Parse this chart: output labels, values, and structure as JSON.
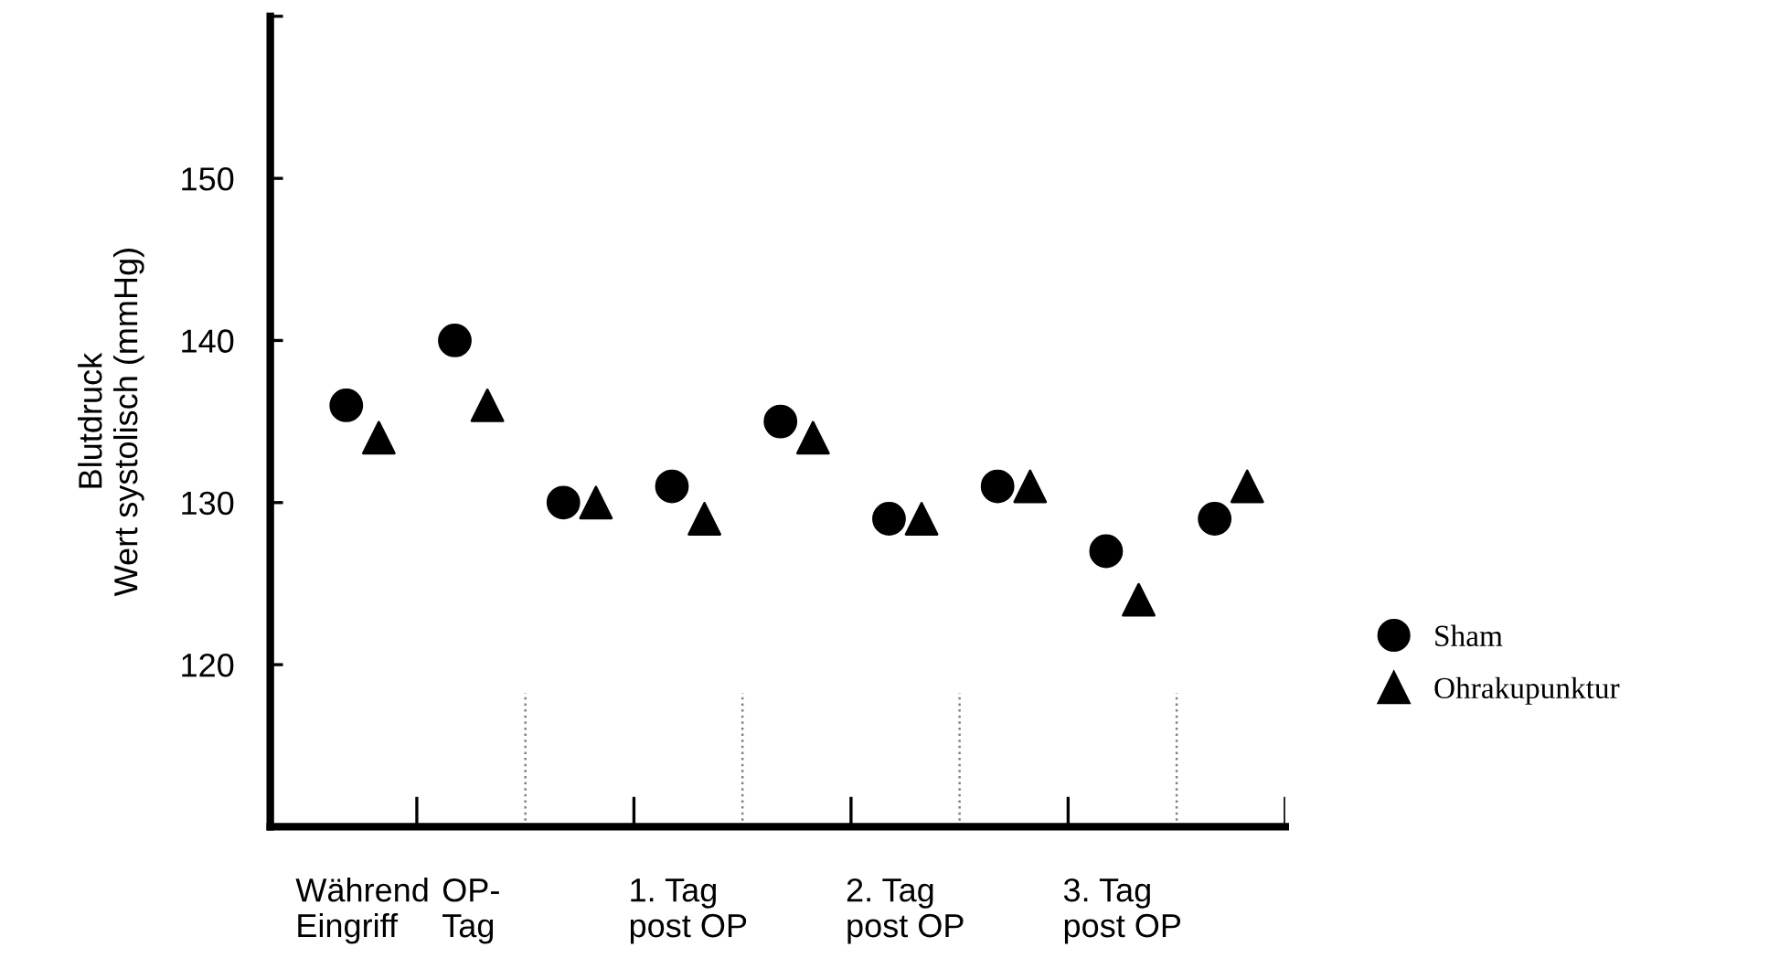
{
  "chart_data": {
    "type": "scatter",
    "ylabel": "Blutdruck\nWert systolisch (mmHg)",
    "categories": [
      "Während\nEingriff",
      "OP-\nTag",
      null,
      "1. Tag\npost OP",
      null,
      "2. Tag\npost OP",
      null,
      "3. Tag\npost OP",
      null
    ],
    "ylim": [
      110,
      160
    ],
    "yticks": [
      120,
      130,
      140,
      150,
      {
        "value": 160,
        "label": null
      }
    ],
    "series": [
      {
        "name": "Sham",
        "color": "#000000",
        "marker": "circle",
        "values": [
          136,
          140,
          130,
          131,
          135,
          129,
          131,
          127,
          129
        ]
      },
      {
        "name": "Ohrakupunktur",
        "color": "#000000",
        "marker": "triangle",
        "values": [
          134,
          136,
          130,
          129,
          134,
          129,
          131,
          124,
          131
        ]
      }
    ],
    "grid": false,
    "legend": "right"
  }
}
